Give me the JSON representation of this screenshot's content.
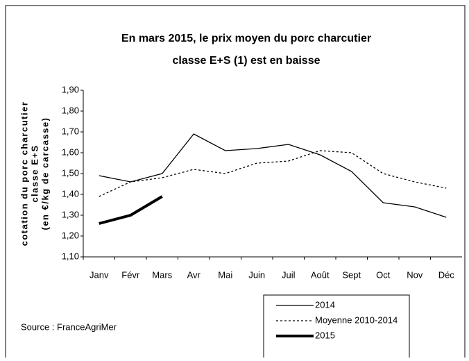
{
  "chart_data": {
    "type": "line",
    "title": [
      "En mars 2015, le prix moyen du porc charcutier",
      "classe E+S (1) est en baisse"
    ],
    "y_label": [
      "cotation du porc charcutier",
      "classe E+S",
      "(en €/kg de carcasse)"
    ],
    "source": "Source : FranceAgriMer",
    "categories": [
      "Janv",
      "Févr",
      "Mars",
      "Avr",
      "Mai",
      "Juin",
      "Juil",
      "Août",
      "Sept",
      "Oct",
      "Nov",
      "Déc"
    ],
    "series": [
      {
        "name": "2014",
        "color": "#000000",
        "width": 1.3,
        "dash": "none",
        "values": [
          1.49,
          1.46,
          1.5,
          1.69,
          1.61,
          1.62,
          1.64,
          1.59,
          1.51,
          1.36,
          1.34,
          1.29
        ]
      },
      {
        "name": "Moyenne 2010-2014",
        "color": "#000000",
        "width": 1.3,
        "dash": "3,3",
        "values": [
          1.39,
          1.46,
          1.48,
          1.52,
          1.5,
          1.55,
          1.56,
          1.61,
          1.6,
          1.5,
          1.46,
          1.43
        ]
      },
      {
        "name": "2015",
        "color": "#000000",
        "width": 4,
        "dash": "none",
        "values": [
          1.26,
          1.3,
          1.39,
          null,
          null,
          null,
          null,
          null,
          null,
          null,
          null,
          null
        ]
      }
    ],
    "ylim": [
      1.1,
      1.9
    ],
    "yticks": [
      {
        "value": 1.1,
        "label": "1,10"
      },
      {
        "value": 1.2,
        "label": "1,20"
      },
      {
        "value": 1.3,
        "label": "1,30"
      },
      {
        "value": 1.4,
        "label": "1,40"
      },
      {
        "value": 1.5,
        "label": "1,50"
      },
      {
        "value": 1.6,
        "label": "1,60"
      },
      {
        "value": 1.7,
        "label": "1,70"
      },
      {
        "value": 1.8,
        "label": "1,80"
      },
      {
        "value": 1.9,
        "label": "1,90"
      }
    ],
    "grid": false
  }
}
